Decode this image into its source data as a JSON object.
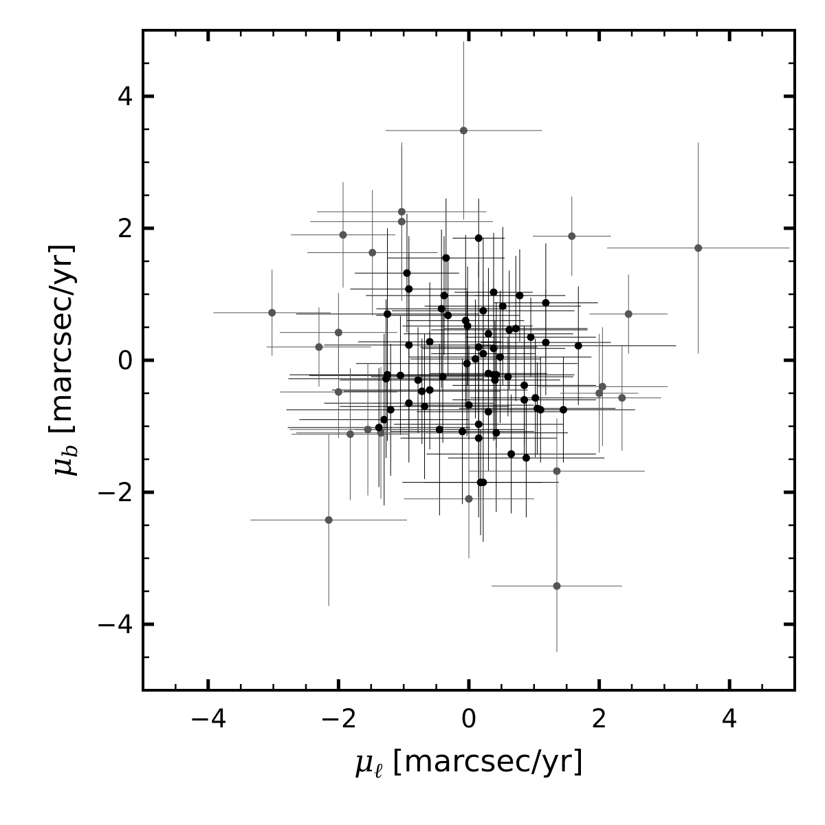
{
  "chart_data": {
    "type": "scatter",
    "title": "",
    "xlabel": {
      "symbol": "μ",
      "subscript": "ℓ",
      "unit": " [marcsec/yr]"
    },
    "ylabel": {
      "symbol": "μ",
      "subscript": "b",
      "unit": " [marcsec/yr]"
    },
    "xlim": [
      -5,
      5
    ],
    "ylim": [
      -5,
      5
    ],
    "major_ticks": [
      -4,
      -2,
      0,
      2,
      4
    ],
    "tick_labels": [
      "−4",
      "−2",
      "0",
      "2",
      "4"
    ],
    "minor_tick_step": 0.5,
    "grid": false,
    "legend": "none",
    "colors": {
      "primary": "#000000",
      "secondary": "#555555"
    },
    "series": [
      {
        "color": "#000000",
        "points": [
          {
            "x": 0.15,
            "y": 1.85,
            "ex": 0.4,
            "ey": 0.6
          },
          {
            "x": -0.35,
            "y": 1.55,
            "ex": 0.9,
            "ey": 0.9
          },
          {
            "x": -0.95,
            "y": 1.32,
            "ex": 0.8,
            "ey": 0.9
          },
          {
            "x": -0.92,
            "y": 1.08,
            "ex": 0.9,
            "ey": 0.8
          },
          {
            "x": 0.38,
            "y": 1.03,
            "ex": 0.6,
            "ey": 0.9
          },
          {
            "x": 0.78,
            "y": 0.98,
            "ex": 0.7,
            "ey": 0.7
          },
          {
            "x": -0.38,
            "y": 0.98,
            "ex": 1.2,
            "ey": 0.9
          },
          {
            "x": 1.18,
            "y": 0.87,
            "ex": 0.8,
            "ey": 0.9
          },
          {
            "x": 0.52,
            "y": 0.82,
            "ex": 1.2,
            "ey": 1.2
          },
          {
            "x": -0.42,
            "y": 0.78,
            "ex": 1.0,
            "ey": 1.2
          },
          {
            "x": 0.22,
            "y": 0.75,
            "ex": 1.4,
            "ey": 1.1
          },
          {
            "x": -1.25,
            "y": 0.7,
            "ex": 1.4,
            "ey": 1.3
          },
          {
            "x": -0.32,
            "y": 0.68,
            "ex": 1.1,
            "ey": 0.9
          },
          {
            "x": -0.05,
            "y": 0.6,
            "ex": 0.9,
            "ey": 1.3
          },
          {
            "x": -0.02,
            "y": 0.52,
            "ex": 1.0,
            "ey": 0.9
          },
          {
            "x": 0.62,
            "y": 0.46,
            "ex": 1.2,
            "ey": 0.9
          },
          {
            "x": 0.72,
            "y": 0.48,
            "ex": 1.1,
            "ey": 1.1
          },
          {
            "x": 0.3,
            "y": 0.4,
            "ex": 1.3,
            "ey": 1.0
          },
          {
            "x": 0.95,
            "y": 0.35,
            "ex": 1.0,
            "ey": 0.6
          },
          {
            "x": -0.6,
            "y": 0.28,
            "ex": 1.1,
            "ey": 0.9
          },
          {
            "x": 1.18,
            "y": 0.27,
            "ex": 1.0,
            "ey": 0.8
          },
          {
            "x": -0.92,
            "y": 0.23,
            "ex": 1.3,
            "ey": 1.4
          },
          {
            "x": 1.68,
            "y": 0.22,
            "ex": 1.5,
            "ey": 0.9
          },
          {
            "x": 0.15,
            "y": 0.2,
            "ex": 0.9,
            "ey": 1.3
          },
          {
            "x": 0.38,
            "y": 0.18,
            "ex": 1.1,
            "ey": 1.0
          },
          {
            "x": 0.22,
            "y": 0.1,
            "ex": 0.8,
            "ey": 1.1
          },
          {
            "x": 0.1,
            "y": 0.02,
            "ex": 1.0,
            "ey": 0.9
          },
          {
            "x": 0.48,
            "y": 0.05,
            "ex": 1.4,
            "ey": 1.0
          },
          {
            "x": -0.03,
            "y": -0.05,
            "ex": 1.7,
            "ey": 1.1
          },
          {
            "x": 0.3,
            "y": -0.2,
            "ex": 0.9,
            "ey": 1.0
          },
          {
            "x": 0.38,
            "y": -0.22,
            "ex": 0.7,
            "ey": 1.0
          },
          {
            "x": 0.42,
            "y": -0.22,
            "ex": 1.2,
            "ey": 1.1
          },
          {
            "x": -1.25,
            "y": -0.22,
            "ex": 1.5,
            "ey": 1.0
          },
          {
            "x": -1.05,
            "y": -0.23,
            "ex": 1.4,
            "ey": 0.9
          },
          {
            "x": -0.4,
            "y": -0.25,
            "ex": 1.1,
            "ey": 1.0
          },
          {
            "x": 0.6,
            "y": -0.25,
            "ex": 1.0,
            "ey": 0.6
          },
          {
            "x": -1.27,
            "y": -0.28,
            "ex": 1.5,
            "ey": 1.2
          },
          {
            "x": 0.4,
            "y": -0.3,
            "ex": 1.0,
            "ey": 0.9
          },
          {
            "x": -0.78,
            "y": -0.3,
            "ex": 1.2,
            "ey": 0.8
          },
          {
            "x": 0.85,
            "y": -0.38,
            "ex": 1.1,
            "ey": 0.9
          },
          {
            "x": -0.6,
            "y": -0.45,
            "ex": 1.5,
            "ey": 0.9
          },
          {
            "x": -0.72,
            "y": -0.47,
            "ex": 1.2,
            "ey": 0.8
          },
          {
            "x": 1.02,
            "y": -0.57,
            "ex": 1.0,
            "ey": 0.9
          },
          {
            "x": 0.85,
            "y": -0.6,
            "ex": 1.1,
            "ey": 0.9
          },
          {
            "x": -0.92,
            "y": -0.65,
            "ex": 1.3,
            "ey": 0.9
          },
          {
            "x": 0.0,
            "y": -0.68,
            "ex": 1.0,
            "ey": 0.9
          },
          {
            "x": -0.68,
            "y": -0.7,
            "ex": 1.3,
            "ey": 1.1
          },
          {
            "x": 1.05,
            "y": -0.73,
            "ex": 1.2,
            "ey": 0.7
          },
          {
            "x": 1.1,
            "y": -0.75,
            "ex": 1.1,
            "ey": 0.8
          },
          {
            "x": -1.2,
            "y": -0.75,
            "ex": 1.6,
            "ey": 1.0
          },
          {
            "x": 1.45,
            "y": -0.75,
            "ex": 1.1,
            "ey": 0.8
          },
          {
            "x": 0.3,
            "y": -0.78,
            "ex": 1.1,
            "ey": 0.9
          },
          {
            "x": -1.3,
            "y": -0.9,
            "ex": 1.3,
            "ey": 1.3
          },
          {
            "x": 0.15,
            "y": -0.97,
            "ex": 1.3,
            "ey": 1.1
          },
          {
            "x": -1.38,
            "y": -1.02,
            "ex": 1.4,
            "ey": 0.9
          },
          {
            "x": -0.45,
            "y": -1.05,
            "ex": 1.3,
            "ey": 1.3
          },
          {
            "x": -0.1,
            "y": -1.08,
            "ex": 1.1,
            "ey": 1.1
          },
          {
            "x": 0.42,
            "y": -1.1,
            "ex": 1.1,
            "ey": 1.2
          },
          {
            "x": 0.15,
            "y": -1.18,
            "ex": 1.2,
            "ey": 1.2
          },
          {
            "x": 0.65,
            "y": -1.42,
            "ex": 1.3,
            "ey": 0.9
          },
          {
            "x": 0.88,
            "y": -1.48,
            "ex": 1.2,
            "ey": 0.9
          },
          {
            "x": 0.18,
            "y": -1.85,
            "ex": 1.2,
            "ey": 0.8
          },
          {
            "x": 0.22,
            "y": -1.85,
            "ex": 0.9,
            "ey": 0.9
          }
        ]
      },
      {
        "color": "#555555",
        "points": [
          {
            "x": -0.08,
            "y": 3.48,
            "ex": 1.2,
            "ey": 1.35
          },
          {
            "x": -1.03,
            "y": 2.25,
            "ex": 1.3,
            "ey": 1.0
          },
          {
            "x": -1.03,
            "y": 2.1,
            "ex": 1.4,
            "ey": 1.2
          },
          {
            "x": -1.93,
            "y": 1.9,
            "ex": 0.8,
            "ey": 0.8
          },
          {
            "x": 1.58,
            "y": 1.88,
            "ex": 0.6,
            "ey": 0.6
          },
          {
            "x": 3.52,
            "y": 1.7,
            "ex": 1.4,
            "ey": 1.6
          },
          {
            "x": -1.48,
            "y": 1.63,
            "ex": 1.0,
            "ey": 0.95
          },
          {
            "x": -3.02,
            "y": 0.72,
            "ex": 0.9,
            "ey": 0.65
          },
          {
            "x": 2.45,
            "y": 0.7,
            "ex": 0.6,
            "ey": 0.6
          },
          {
            "x": -2.0,
            "y": 0.42,
            "ex": 0.9,
            "ey": 0.6
          },
          {
            "x": -2.3,
            "y": 0.2,
            "ex": 0.8,
            "ey": 0.6
          },
          {
            "x": -2.0,
            "y": -0.48,
            "ex": 0.9,
            "ey": 0.7
          },
          {
            "x": 2.05,
            "y": -0.4,
            "ex": 1.0,
            "ey": 0.9
          },
          {
            "x": 2.0,
            "y": -0.5,
            "ex": 0.6,
            "ey": 0.9
          },
          {
            "x": 2.35,
            "y": -0.57,
            "ex": 0.6,
            "ey": 0.8
          },
          {
            "x": -1.55,
            "y": -1.05,
            "ex": 1.2,
            "ey": 1.0
          },
          {
            "x": -1.82,
            "y": -1.12,
            "ex": 0.9,
            "ey": 1.0
          },
          {
            "x": -1.35,
            "y": -1.1,
            "ex": 1.3,
            "ey": 1.0
          },
          {
            "x": 1.35,
            "y": -1.68,
            "ex": 1.35,
            "ey": 0.8
          },
          {
            "x": 0.0,
            "y": -2.1,
            "ex": 1.0,
            "ey": 0.9
          },
          {
            "x": -2.15,
            "y": -2.42,
            "ex": 1.2,
            "ey": 1.3
          },
          {
            "x": 1.35,
            "y": -3.42,
            "ex": 1.0,
            "ey": 1.0
          }
        ]
      }
    ]
  }
}
